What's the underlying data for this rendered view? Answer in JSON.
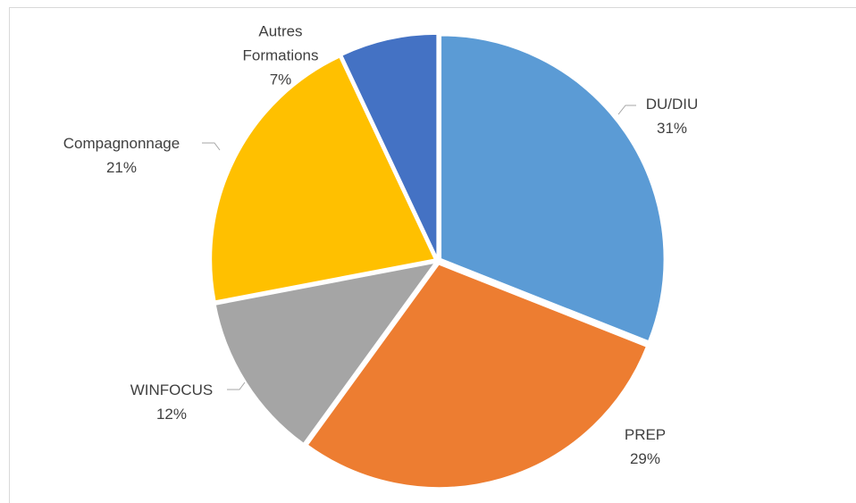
{
  "chart_data": {
    "type": "pie",
    "categories": [
      "DU/DIU",
      "PREP",
      "WINFOCUS",
      "Compagnonnage",
      "Autres Formations"
    ],
    "values": [
      31,
      29,
      12,
      21,
      7
    ],
    "value_labels": [
      "31%",
      "29%",
      "12%",
      "21%",
      "7%"
    ],
    "colors": [
      "#5b9bd5",
      "#ed7d31",
      "#a5a5a5",
      "#ffc000",
      "#4472c4"
    ]
  }
}
